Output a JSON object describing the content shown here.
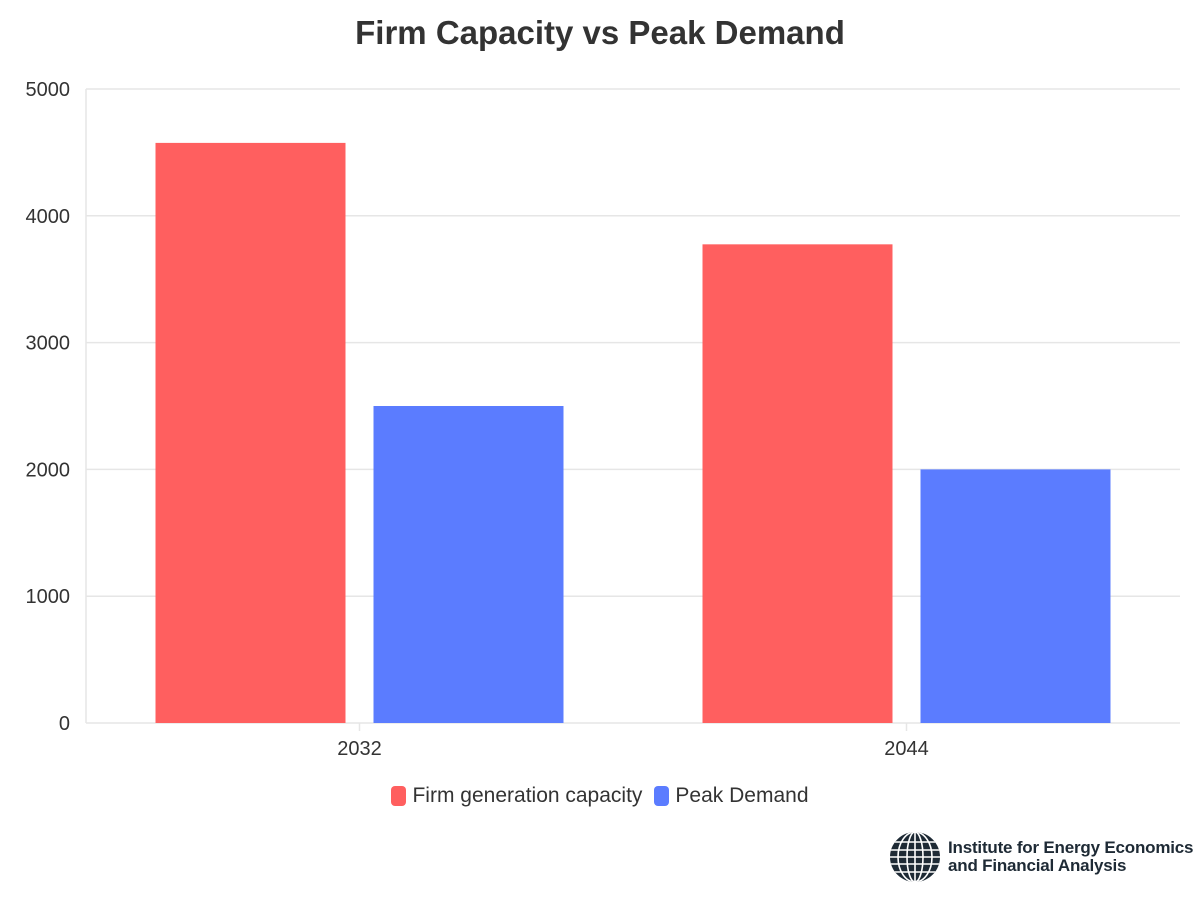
{
  "chart_data": {
    "type": "bar",
    "title": "Firm Capacity vs Peak Demand",
    "categories": [
      "2032",
      "2044"
    ],
    "series": [
      {
        "name": "Firm generation capacity",
        "values": [
          4575,
          3775
        ],
        "color": "#ff5f5f"
      },
      {
        "name": "Peak Demand",
        "values": [
          2500,
          2000
        ],
        "color": "#5b7cff"
      }
    ],
    "ylim": [
      0,
      5000
    ],
    "yticks": [
      0,
      1000,
      2000,
      3000,
      4000,
      5000
    ],
    "grid": true,
    "legend": "bottom-center"
  },
  "logo": {
    "line1": "Institute for Energy Economics",
    "line2": "and Financial Analysis"
  }
}
